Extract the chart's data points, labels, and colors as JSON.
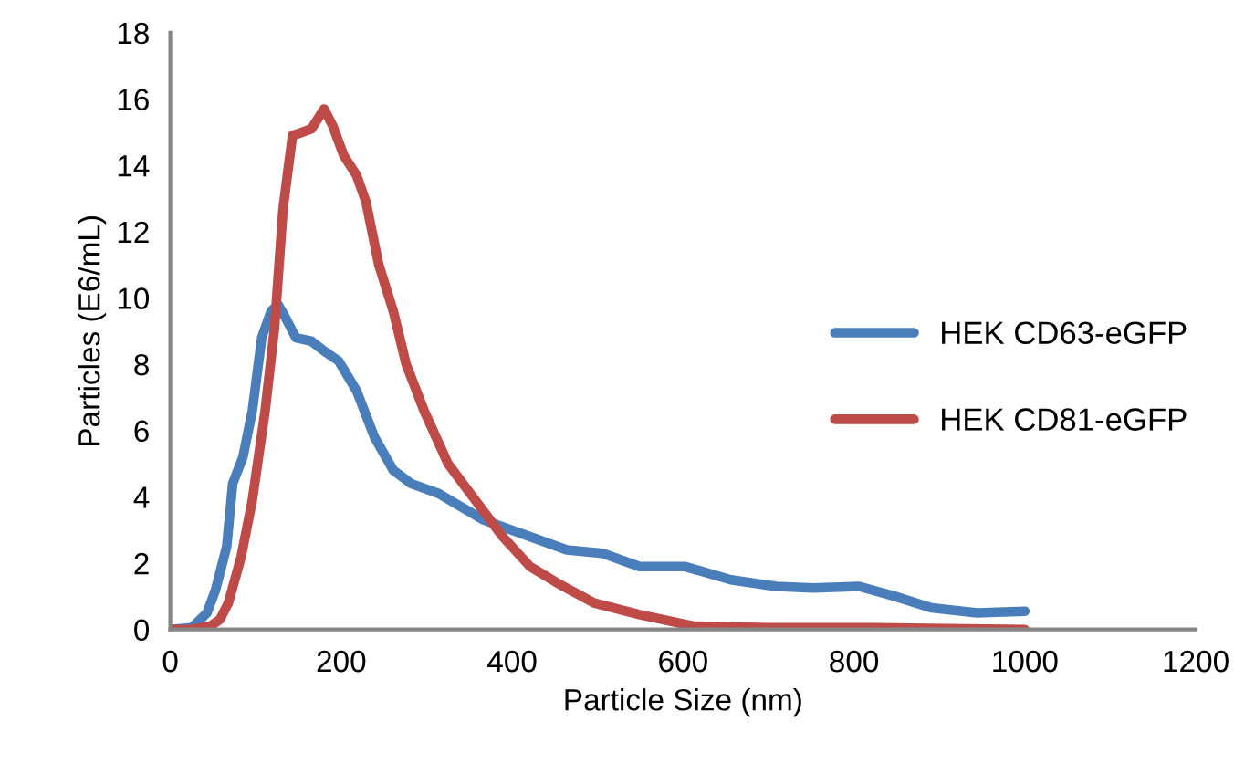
{
  "chart_data": {
    "type": "line",
    "xlabel": "Particle Size (nm)",
    "ylabel": "Particles (E6/mL)",
    "xlim": [
      0,
      1200
    ],
    "xticks": [
      0,
      200,
      400,
      600,
      800,
      1000,
      1200
    ],
    "ylim": [
      0,
      18
    ],
    "yticks": [
      0,
      2,
      4,
      6,
      8,
      10,
      12,
      14,
      16,
      18
    ],
    "grid": false,
    "legend": "right",
    "marker": "none",
    "line_style": "solid",
    "series": [
      {
        "name": "HEK CD63-eGFP",
        "color": "#4a7ebb",
        "x": [
          0,
          25,
          43,
          53,
          66,
          73,
          85,
          96,
          107,
          118,
          126,
          135,
          147,
          165,
          180,
          197,
          218,
          239,
          261,
          282,
          314,
          367,
          421,
          464,
          506,
          549,
          602,
          656,
          709,
          752,
          806,
          848,
          891,
          944,
          1000
        ],
        "values": [
          0,
          0.05,
          0.5,
          1.2,
          2.5,
          4.4,
          5.2,
          6.6,
          8.8,
          9.6,
          9.8,
          9.4,
          8.8,
          8.7,
          8.4,
          8.1,
          7.2,
          5.8,
          4.8,
          4.4,
          4.1,
          3.3,
          2.8,
          2.4,
          2.3,
          1.9,
          1.9,
          1.5,
          1.3,
          1.25,
          1.3,
          1.0,
          0.65,
          0.5,
          0.55
        ]
      },
      {
        "name": "HEK CD81-eGFP",
        "color": "#be4b48",
        "x": [
          0,
          25,
          47,
          58,
          68,
          83,
          96,
          111,
          122,
          132,
          143,
          154,
          165,
          180,
          190,
          203,
          218,
          229,
          244,
          261,
          276,
          297,
          325,
          357,
          389,
          421,
          453,
          496,
          549,
          613,
          699,
          827,
          1000
        ],
        "values": [
          0,
          0,
          0.1,
          0.3,
          0.8,
          2.2,
          3.9,
          6.6,
          9.1,
          12.7,
          14.9,
          15.0,
          15.1,
          15.7,
          15.2,
          14.3,
          13.7,
          12.9,
          11.0,
          9.6,
          8.0,
          6.6,
          5.0,
          3.9,
          2.8,
          1.9,
          1.4,
          0.8,
          0.45,
          0.1,
          0.05,
          0.05,
          0
        ]
      }
    ]
  }
}
